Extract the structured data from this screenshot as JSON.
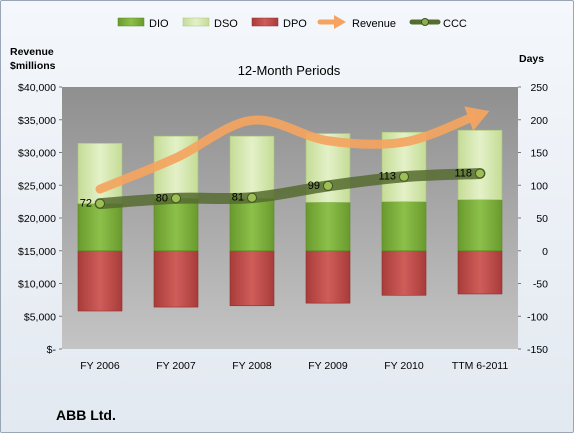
{
  "chart_data": {
    "type": "bar",
    "title": "12-Month Periods",
    "company": "ABB Ltd.",
    "left_axis_title": [
      "Revenue",
      "$millions"
    ],
    "right_axis_title": "Days",
    "categories": [
      "FY 2006",
      "FY 2007",
      "FY 2008",
      "FY 2009",
      "FY 2010",
      "TTM 6-2011"
    ],
    "left_axis": {
      "min": 0,
      "max": 40000,
      "step": 5000,
      "tick_labels": [
        "$-",
        "$5,000",
        "$10,000",
        "$15,000",
        "$20,000",
        "$25,000",
        "$30,000",
        "$35,000",
        "$40,000"
      ]
    },
    "right_axis": {
      "min": -150,
      "max": 250,
      "step": 50,
      "tick_labels": [
        "-150",
        "-100",
        "-50",
        "0",
        "50",
        "100",
        "150",
        "200",
        "250"
      ]
    },
    "series": [
      {
        "name": "DIO",
        "kind": "bar",
        "axis": "right",
        "color": "#7bab3c",
        "values": [
          72,
          80,
          80,
          74,
          75,
          78
        ]
      },
      {
        "name": "DSO",
        "kind": "bar",
        "axis": "right",
        "color": "#d6e8b0",
        "values": [
          92,
          95,
          95,
          105,
          106,
          106
        ]
      },
      {
        "name": "DPO",
        "kind": "bar",
        "axis": "right",
        "color": "#c0504d",
        "values": [
          92,
          86,
          84,
          80,
          68,
          66
        ]
      },
      {
        "name": "Revenue",
        "kind": "line",
        "axis": "left",
        "color": "#f4a460",
        "values": [
          24412,
          29183,
          34912,
          31795,
          31589,
          35800
        ]
      },
      {
        "name": "CCC",
        "kind": "line",
        "axis": "right",
        "color": "#556b2f",
        "values": [
          72,
          80,
          81,
          99,
          113,
          118
        ],
        "labels": [
          "72",
          "80",
          "81",
          "99",
          "113",
          "118"
        ]
      }
    ],
    "legend": {
      "position": "top",
      "items": [
        {
          "name": "DIO",
          "symbol": "bar",
          "color": "#7bab3c"
        },
        {
          "name": "DSO",
          "symbol": "bar",
          "color": "#d6e8b0"
        },
        {
          "name": "DPO",
          "symbol": "bar",
          "color": "#c0504d"
        },
        {
          "name": "Revenue",
          "symbol": "arrow",
          "color": "#f4a460"
        },
        {
          "name": "CCC",
          "symbol": "line-marker",
          "color": "#556b2f"
        }
      ]
    },
    "grid": false
  }
}
